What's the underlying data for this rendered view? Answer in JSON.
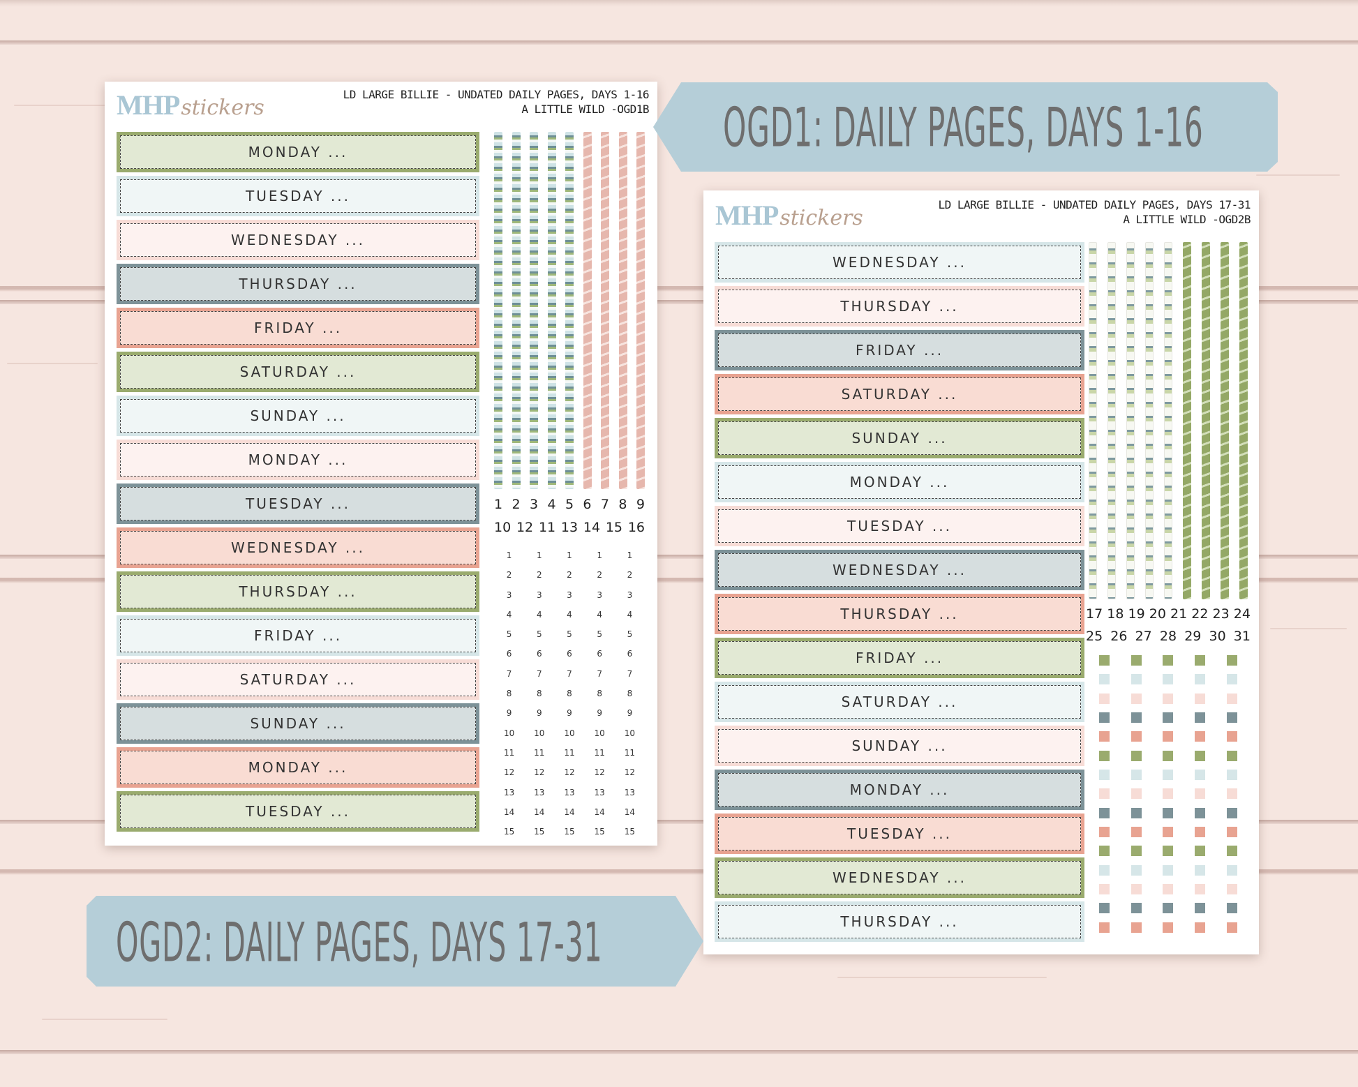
{
  "brand": {
    "logo_main": "MHP",
    "logo_script": "stickers"
  },
  "colors": {
    "green": "#9aab6e",
    "light_blue": "#d6e6e8",
    "pink": "#f7dcd6",
    "slate": "#7d9298",
    "coral": "#e8a391",
    "banner": "#b5ced8",
    "banner_text": "#6e6e6e"
  },
  "banners": {
    "top": "OGD1: DAILY PAGES, DAYS 1-16",
    "bottom": "OGD2: DAILY PAGES, DAYS 17-31"
  },
  "sheet1": {
    "title_line1": "LD LARGE BILLIE  - UNDATED DAILY PAGES, DAYS 1-16",
    "title_line2": "A LITTLE WILD -OGD1B",
    "days": [
      {
        "label": "MONDAY ...",
        "color": "green"
      },
      {
        "label": "TUESDAY ...",
        "color": "light_blue"
      },
      {
        "label": "WEDNESDAY ...",
        "color": "pink"
      },
      {
        "label": "THURSDAY ...",
        "color": "slate"
      },
      {
        "label": "FRIDAY ...",
        "color": "coral"
      },
      {
        "label": "SATURDAY ...",
        "color": "green"
      },
      {
        "label": "SUNDAY ...",
        "color": "light_blue"
      },
      {
        "label": "MONDAY ...",
        "color": "pink"
      },
      {
        "label": "TUESDAY ...",
        "color": "slate"
      },
      {
        "label": "WEDNESDAY ...",
        "color": "coral"
      },
      {
        "label": "THURSDAY ...",
        "color": "green"
      },
      {
        "label": "FRIDAY ...",
        "color": "light_blue"
      },
      {
        "label": "SATURDAY ...",
        "color": "pink"
      },
      {
        "label": "SUNDAY ...",
        "color": "slate"
      },
      {
        "label": "MONDAY ...",
        "color": "coral"
      },
      {
        "label": "TUESDAY ...",
        "color": "green"
      }
    ],
    "strips": [
      "blue",
      "blue",
      "blue",
      "blue",
      "blue",
      "pink",
      "pink",
      "pink",
      "pink"
    ],
    "date_row1": [
      "1",
      "2",
      "3",
      "4",
      "5",
      "6",
      "7",
      "8",
      "9"
    ],
    "date_row2": [
      "10",
      "12",
      "11",
      "13",
      "14",
      "15",
      "16"
    ],
    "number_rows": [
      "1",
      "2",
      "3",
      "4",
      "5",
      "6",
      "7",
      "8",
      "9",
      "10",
      "11",
      "12",
      "13",
      "14",
      "15"
    ],
    "number_columns": 5
  },
  "sheet2": {
    "title_line1": "LD LARGE BILLIE - UNDATED DAILY PAGES, DAYS 17-31",
    "title_line2": "A LITTLE WILD -OGD2B",
    "days": [
      {
        "label": "WEDNESDAY ...",
        "color": "light_blue"
      },
      {
        "label": "THURSDAY ...",
        "color": "pink"
      },
      {
        "label": "FRIDAY ...",
        "color": "slate"
      },
      {
        "label": "SATURDAY ...",
        "color": "coral"
      },
      {
        "label": "SUNDAY ...",
        "color": "green"
      },
      {
        "label": "MONDAY ...",
        "color": "light_blue"
      },
      {
        "label": "TUESDAY ...",
        "color": "pink"
      },
      {
        "label": "WEDNESDAY ...",
        "color": "slate"
      },
      {
        "label": "THURSDAY ...",
        "color": "coral"
      },
      {
        "label": "FRIDAY ...",
        "color": "green"
      },
      {
        "label": "SATURDAY ...",
        "color": "light_blue"
      },
      {
        "label": "SUNDAY ...",
        "color": "pink"
      },
      {
        "label": "MONDAY ...",
        "color": "slate"
      },
      {
        "label": "TUESDAY ...",
        "color": "coral"
      },
      {
        "label": "WEDNESDAY ...",
        "color": "green"
      },
      {
        "label": "THURSDAY ...",
        "color": "light_blue"
      }
    ],
    "strips": [
      "white",
      "white",
      "white",
      "white",
      "white",
      "green",
      "green",
      "green",
      "green"
    ],
    "date_row1": [
      "17",
      "18",
      "19",
      "20",
      "21",
      "22",
      "23",
      "24"
    ],
    "date_row2": [
      "25",
      "26",
      "27",
      "28",
      "29",
      "30",
      "31"
    ],
    "dot_row_colors": [
      "green",
      "light_blue",
      "pink",
      "slate",
      "coral",
      "green",
      "light_blue",
      "pink",
      "slate",
      "coral",
      "green",
      "light_blue",
      "pink",
      "slate",
      "coral"
    ],
    "dot_columns": 5
  }
}
